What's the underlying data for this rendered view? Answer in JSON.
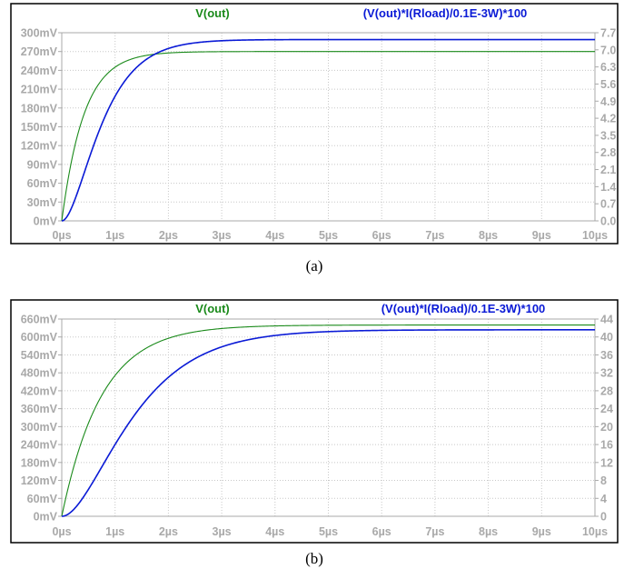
{
  "colors": {
    "green": "#1a8a1a",
    "blue": "#0a1ad6",
    "grid": "#c8c8c8",
    "tick": "#a9a9a9"
  },
  "chart_data": [
    {
      "type": "line",
      "caption": "(a)",
      "x_ticks": [
        "0µs",
        "1µs",
        "2µs",
        "3µs",
        "4µs",
        "5µs",
        "6µs",
        "7µs",
        "8µs",
        "9µs",
        "10µs"
      ],
      "y_left_ticks": [
        "0mV",
        "30mV",
        "60mV",
        "90mV",
        "120mV",
        "150mV",
        "180mV",
        "210mV",
        "240mV",
        "270mV",
        "300mV"
      ],
      "y_right_ticks": [
        "0.0",
        "0.7",
        "1.4",
        "2.1",
        "2.8",
        "3.5",
        "4.2",
        "4.9",
        "5.6",
        "6.3",
        "7.0",
        "7.7"
      ],
      "xlim": [
        0,
        10
      ],
      "ylim_left": [
        0,
        300
      ],
      "ylim_right": [
        0,
        7.7
      ],
      "series": [
        {
          "name": "V(out)",
          "axis": "left",
          "color": "#1a8a1a",
          "final": 270,
          "tau": 0.42,
          "order": 1
        },
        {
          "name": "(V(out)*I(Rload)/0.1E-3W)*100",
          "axis": "right",
          "color": "#0a1ad6",
          "final": 7.42,
          "tau": 0.42,
          "order": 2
        }
      ]
    },
    {
      "type": "line",
      "caption": "(b)",
      "x_ticks": [
        "0µs",
        "1µs",
        "2µs",
        "3µs",
        "4µs",
        "5µs",
        "6µs",
        "7µs",
        "8µs",
        "9µs",
        "10µs"
      ],
      "y_left_ticks": [
        "0mV",
        "60mV",
        "120mV",
        "180mV",
        "240mV",
        "300mV",
        "360mV",
        "420mV",
        "480mV",
        "540mV",
        "600mV",
        "660mV"
      ],
      "y_right_ticks": [
        "0",
        "4",
        "8",
        "12",
        "16",
        "20",
        "24",
        "28",
        "32",
        "36",
        "40",
        "44"
      ],
      "xlim": [
        0,
        10
      ],
      "ylim_left": [
        0,
        660
      ],
      "ylim_right": [
        0,
        44
      ],
      "series": [
        {
          "name": "V(out)",
          "axis": "left",
          "color": "#1a8a1a",
          "final": 640,
          "tau": 0.75,
          "order": 1
        },
        {
          "name": "(V(out)*I(Rload)/0.1E-3W)*100",
          "axis": "right",
          "color": "#0a1ad6",
          "final": 41.6,
          "tau": 0.75,
          "order": 2
        }
      ]
    }
  ]
}
